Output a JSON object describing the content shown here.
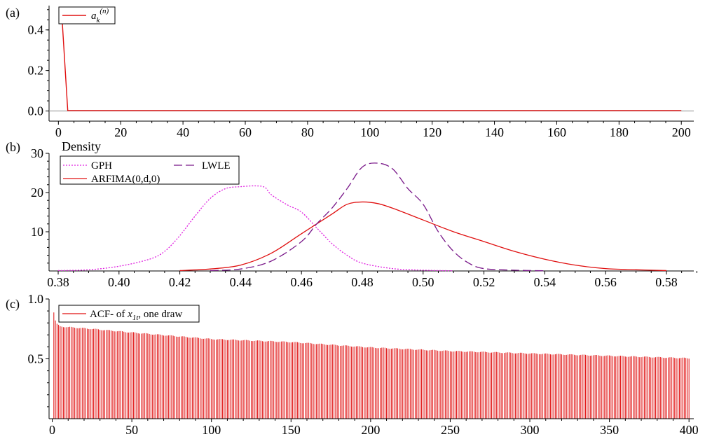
{
  "chart_data": [
    {
      "id": "a",
      "panel_label": "(a)",
      "type": "line",
      "xlim": [
        -3,
        204
      ],
      "ylim": [
        -0.05,
        0.52
      ],
      "xticks": [
        0,
        20,
        40,
        60,
        80,
        100,
        120,
        140,
        160,
        180,
        200
      ],
      "yticks": [
        0.0,
        0.2,
        0.4
      ],
      "ytick_labels": [
        "0.0",
        "0.2",
        "0.4"
      ],
      "zero_line": true,
      "series": [
        {
          "name": "a_k^(n)",
          "legend_main": "a",
          "legend_sub": "k",
          "legend_sup": "(n)",
          "color": "#e01010",
          "style": "solid",
          "x": [
            1,
            2,
            3,
            200
          ],
          "y": [
            0.5,
            0.25,
            0.002,
            0.002
          ]
        }
      ]
    },
    {
      "id": "b",
      "panel_label": "(b)",
      "type": "line",
      "ylabel": "Density",
      "xlim": [
        0.377,
        0.589
      ],
      "ylim": [
        0,
        30
      ],
      "xticks": [
        0.38,
        0.4,
        0.42,
        0.44,
        0.46,
        0.48,
        0.5,
        0.52,
        0.54,
        0.56,
        0.58
      ],
      "xtick_labels": [
        "0.38",
        "0.40",
        "0.42",
        "0.44",
        "0.46",
        "0.48",
        "0.50",
        "0.52",
        "0.54",
        "0.56",
        "0.58"
      ],
      "yticks": [
        10,
        20,
        30
      ],
      "legend_placement": "top-left",
      "series": [
        {
          "name": "GPH",
          "color": "#e020e0",
          "style": "dotted",
          "x": [
            0.38,
            0.39,
            0.4,
            0.41,
            0.415,
            0.42,
            0.425,
            0.43,
            0.435,
            0.44,
            0.445,
            0.448,
            0.45,
            0.455,
            0.46,
            0.465,
            0.47,
            0.475,
            0.48,
            0.49,
            0.5,
            0.51
          ],
          "y": [
            0.1,
            0.3,
            1.2,
            3,
            5,
            9,
            14,
            18.5,
            21,
            21.5,
            21.7,
            21.3,
            19.5,
            17,
            15,
            11,
            7,
            4,
            2,
            0.6,
            0.2,
            0.05
          ]
        },
        {
          "name": "ARFIMA(0,d,0)",
          "color": "#e01010",
          "style": "solid",
          "x": [
            0.42,
            0.43,
            0.44,
            0.45,
            0.46,
            0.47,
            0.475,
            0.48,
            0.485,
            0.49,
            0.5,
            0.51,
            0.52,
            0.53,
            0.54,
            0.55,
            0.56,
            0.57,
            0.58
          ],
          "y": [
            0.1,
            0.5,
            1.5,
            4.5,
            9.5,
            14.5,
            17,
            17.6,
            17.2,
            16,
            13,
            10,
            7.5,
            5,
            3,
            1.5,
            0.6,
            0.3,
            0.1
          ]
        },
        {
          "name": "LWLE",
          "color": "#7a1a8a",
          "style": "dashed",
          "x": [
            0.43,
            0.44,
            0.45,
            0.46,
            0.465,
            0.47,
            0.475,
            0.48,
            0.485,
            0.49,
            0.495,
            0.5,
            0.505,
            0.51,
            0.515,
            0.52,
            0.53,
            0.54
          ],
          "y": [
            0.1,
            0.5,
            2.5,
            7.5,
            12,
            16,
            21,
            26.5,
            27.5,
            26,
            21,
            17,
            10,
            5,
            2,
            0.6,
            0.2,
            0.05
          ]
        }
      ]
    },
    {
      "id": "c",
      "panel_label": "(c)",
      "type": "bar",
      "xlim": [
        -2,
        403
      ],
      "ylim": [
        0,
        1.0
      ],
      "xticks": [
        0,
        50,
        100,
        150,
        200,
        250,
        300,
        350,
        400
      ],
      "yticks": [
        0.5,
        1.0
      ],
      "ytick_labels": [
        "0.5",
        "1.0"
      ],
      "series": [
        {
          "name": "ACF- of x_1t, one draw",
          "legend_prefix": "ACF- of ",
          "legend_var": "x",
          "legend_sub": "1t",
          "legend_suffix": ", one draw",
          "color": "#e01010",
          "lag_start": 1,
          "lag_end": 400,
          "x": [
            1,
            2,
            3,
            5,
            10,
            25,
            50,
            100,
            150,
            200,
            250,
            300,
            350,
            400
          ],
          "y": [
            0.89,
            0.82,
            0.79,
            0.77,
            0.765,
            0.75,
            0.72,
            0.665,
            0.64,
            0.595,
            0.565,
            0.545,
            0.525,
            0.505
          ]
        }
      ]
    }
  ]
}
